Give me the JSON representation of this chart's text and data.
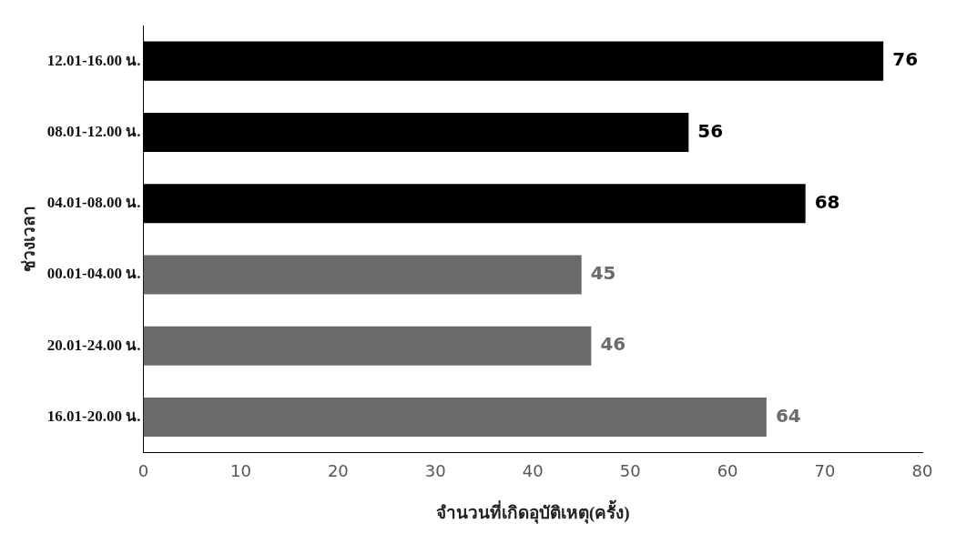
{
  "chart_data": {
    "type": "bar",
    "orientation": "horizontal",
    "xlabel": "จำนวนที่เกิดอุบัติเหตุ(ครั้ง)",
    "ylabel": "ช่วงเวลา",
    "categories": [
      "12.01-16.00 น.",
      "08.01-12.00 น.",
      "04.01-08.00 น.",
      "00.01-04.00 น.",
      "20.01-24.00 น.",
      "16.01-20.00 น."
    ],
    "values": [
      76,
      56,
      68,
      45,
      46,
      64
    ],
    "colors": [
      "#000000",
      "#000000",
      "#000000",
      "#6b6b6b",
      "#6b6b6b",
      "#6b6b6b"
    ],
    "xlim": [
      0,
      80
    ],
    "xticks": [
      0,
      10,
      20,
      30,
      40,
      50,
      60,
      70,
      80
    ],
    "data_labels": true,
    "grid": false,
    "legend": false
  }
}
